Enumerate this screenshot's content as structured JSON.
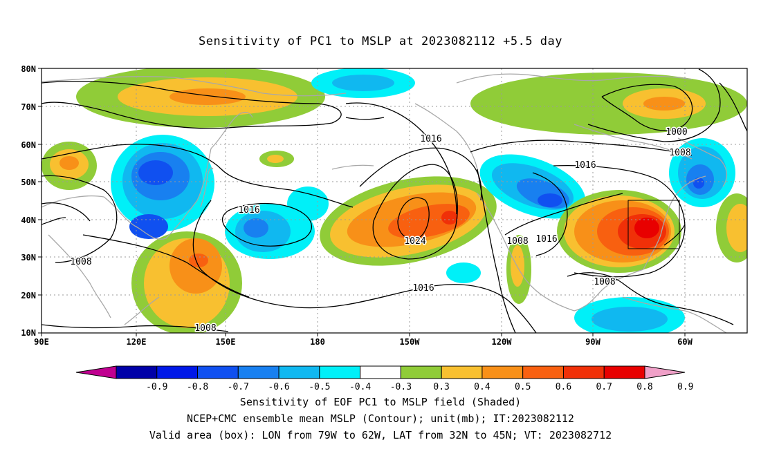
{
  "title": "Sensitivity of PC1 to MSLP at 2023082112 +5.5 day",
  "lat_labels": [
    "80N",
    "70N",
    "60N",
    "50N",
    "40N",
    "30N",
    "20N",
    "10N"
  ],
  "lon_labels": [
    "90E",
    "120E",
    "150E",
    "180",
    "150W",
    "120W",
    "90W",
    "60W"
  ],
  "contour_labels": [
    "1016",
    "1016",
    "1024",
    "1016",
    "1008",
    "1016",
    "1008",
    "1008",
    "1000",
    "1008",
    "1008",
    "1016"
  ],
  "colorbar": {
    "ticks": [
      "-0.9",
      "-0.8",
      "-0.7",
      "-0.6",
      "-0.5",
      "-0.4",
      "-0.3",
      "0.3",
      "0.4",
      "0.5",
      "0.6",
      "0.7",
      "0.8",
      "0.9"
    ],
    "colors": [
      "#c00090",
      "#0000a8",
      "#0018e8",
      "#1050f0",
      "#1880f0",
      "#10b8f0",
      "#00f0f8",
      "#ffffff",
      "#90cc38",
      "#f8c030",
      "#f89018",
      "#f86010",
      "#f03008",
      "#e80000",
      "#f0a0c8"
    ]
  },
  "box": {
    "lon_min": "79W",
    "lon_max": "62W",
    "lat_min": "32N",
    "lat_max": "45N"
  },
  "captions": [
    "Sensitivity of EOF PC1 to MSLP field (Shaded)",
    "NCEP+CMC ensemble mean MSLP (Contour); unit(mb); IT:2023082112",
    "Valid area (box): LON from 79W to 62W, LAT from 32N to 45N; VT: 2023082712"
  ]
}
